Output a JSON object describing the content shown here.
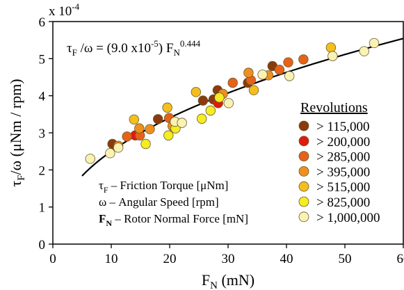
{
  "chart_data": {
    "type": "scatter",
    "multiplier_label": "x 10",
    "multiplier_exp": "-4",
    "xlim": [
      0,
      60
    ],
    "ylim": [
      0,
      6
    ],
    "xticks": [
      0,
      10,
      20,
      30,
      40,
      50,
      60
    ],
    "yticks": [
      0,
      1,
      2,
      3,
      4,
      5,
      6
    ],
    "grid": false,
    "legend_position": "right",
    "xlabel": {
      "main": "F",
      "sub": "N",
      "rest": " (mN)"
    },
    "ylabel": {
      "lead": "τ",
      "sub": "F",
      "rest": "/ω  (μNm / rpm)"
    },
    "equation": {
      "lhs_tau": "τ",
      "lhs_sub": "F",
      "lhs_rest": " /ω = (9.0 x10",
      "coef_exp": "-5",
      "mid": ") F",
      "f_sub": "N",
      "power": "0.444"
    },
    "fit_curve": {
      "type": "power",
      "coefficient": 9.0,
      "exponent": 0.444,
      "x_range": [
        5,
        60
      ],
      "color": "#000000"
    },
    "annotations": [
      {
        "lead": "τ",
        "sub": "F",
        "text": " – Friction Torque [μNm]"
      },
      {
        "lead": "ω",
        "sub": "",
        "text": "  – Angular Speed [rpm]"
      },
      {
        "lead": "F",
        "sub": "N",
        "text": " – Rotor Normal Force [mN]",
        "bold_lead": true
      }
    ],
    "legend_title": "Revolutions",
    "series": [
      {
        "name": "> 115,000",
        "color": "#8B3A0E",
        "points": [
          [
            10.2,
            2.7
          ],
          [
            18.0,
            3.37
          ],
          [
            25.7,
            3.87
          ],
          [
            27.5,
            3.9
          ],
          [
            28.2,
            4.15
          ],
          [
            33.4,
            4.35
          ],
          [
            37.6,
            4.8
          ]
        ]
      },
      {
        "name": "> 200,000",
        "color": "#E01B0C",
        "points": [
          [
            14.1,
            2.93
          ],
          [
            28.3,
            3.8
          ]
        ]
      },
      {
        "name": "> 285,000",
        "color": "#E6621A",
        "points": [
          [
            12.7,
            2.9
          ],
          [
            14.9,
            2.93
          ],
          [
            19.9,
            3.4
          ],
          [
            30.8,
            4.35
          ],
          [
            33.9,
            4.42
          ],
          [
            38.8,
            4.7
          ],
          [
            40.3,
            4.9
          ],
          [
            42.9,
            4.98
          ]
        ]
      },
      {
        "name": "> 395,000",
        "color": "#EE8F1E",
        "points": [
          [
            11.2,
            2.65
          ],
          [
            14.8,
            3.12
          ],
          [
            16.6,
            3.1
          ],
          [
            20.5,
            3.18
          ],
          [
            29.1,
            4.05
          ],
          [
            33.5,
            4.62
          ],
          [
            36.9,
            4.55
          ]
        ]
      },
      {
        "name": "> 515,000",
        "color": "#F4BE1E",
        "points": [
          [
            13.9,
            3.36
          ],
          [
            19.6,
            3.68
          ],
          [
            24.5,
            4.1
          ],
          [
            34.4,
            4.15
          ],
          [
            47.6,
            5.3
          ]
        ]
      },
      {
        "name": "> 825,000",
        "color": "#F5EC22",
        "points": [
          [
            15.9,
            2.7
          ],
          [
            19.8,
            2.93
          ],
          [
            21.0,
            3.12
          ],
          [
            25.5,
            3.38
          ],
          [
            27.0,
            3.6
          ],
          [
            28.5,
            3.95
          ]
        ]
      },
      {
        "name": "> 1,000,000",
        "color": "#F8F2B4",
        "points": [
          [
            6.4,
            2.3
          ],
          [
            9.8,
            2.45
          ],
          [
            11.2,
            2.6
          ],
          [
            20.9,
            3.3
          ],
          [
            22.1,
            3.27
          ],
          [
            30.1,
            3.8
          ],
          [
            35.9,
            4.57
          ],
          [
            40.5,
            4.53
          ],
          [
            47.9,
            5.07
          ],
          [
            53.3,
            5.2
          ],
          [
            55.0,
            5.42
          ]
        ]
      }
    ]
  }
}
